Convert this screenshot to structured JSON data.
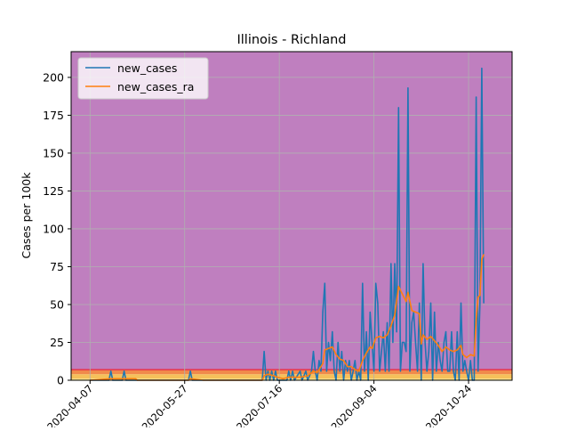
{
  "chart_data": {
    "type": "line",
    "title": "Illinois - Richland",
    "xlabel": "",
    "ylabel": "Cases per 100k",
    "x_start": "2020-03-28",
    "x_end": "2020-11-16",
    "ylim": [
      0,
      217
    ],
    "x_ticks": [
      "2020-04-07",
      "2020-05-27",
      "2020-07-16",
      "2020-09-04",
      "2020-10-24"
    ],
    "y_ticks": [
      0,
      25,
      50,
      75,
      100,
      125,
      150,
      175,
      200
    ],
    "grid": true,
    "legend": "top-left",
    "background_bands": [
      {
        "from": 0,
        "to": 1,
        "color": "#fde98c"
      },
      {
        "from": 1,
        "to": 4,
        "color": "#f5c05a"
      },
      {
        "from": 4,
        "to": 7,
        "color": "#f08a4b"
      },
      {
        "from": 7,
        "to": 217,
        "color": "#bf7fbf"
      }
    ],
    "band_edge_color": "#e8334a",
    "series": [
      {
        "name": "new_cases",
        "color": "#1f77b4",
        "points": [
          [
            "2020-04-07",
            0
          ],
          [
            "2020-04-17",
            0
          ],
          [
            "2020-04-18",
            6
          ],
          [
            "2020-04-19",
            0
          ],
          [
            "2020-04-24",
            0
          ],
          [
            "2020-04-25",
            6
          ],
          [
            "2020-04-26",
            0
          ],
          [
            "2020-05-27",
            0
          ],
          [
            "2020-05-29",
            0
          ],
          [
            "2020-05-30",
            6
          ],
          [
            "2020-05-31",
            0
          ],
          [
            "2020-07-07",
            0
          ],
          [
            "2020-07-08",
            19
          ],
          [
            "2020-07-09",
            0
          ],
          [
            "2020-07-10",
            6
          ],
          [
            "2020-07-11",
            0
          ],
          [
            "2020-07-12",
            6
          ],
          [
            "2020-07-13",
            0
          ],
          [
            "2020-07-14",
            6
          ],
          [
            "2020-07-15",
            0
          ],
          [
            "2020-07-20",
            0
          ],
          [
            "2020-07-21",
            6
          ],
          [
            "2020-07-22",
            0
          ],
          [
            "2020-07-23",
            6
          ],
          [
            "2020-07-24",
            0
          ],
          [
            "2020-07-27",
            6
          ],
          [
            "2020-07-28",
            0
          ],
          [
            "2020-07-30",
            6
          ],
          [
            "2020-07-31",
            0
          ],
          [
            "2020-08-02",
            6
          ],
          [
            "2020-08-03",
            19
          ],
          [
            "2020-08-04",
            6
          ],
          [
            "2020-08-05",
            0
          ],
          [
            "2020-08-06",
            13
          ],
          [
            "2020-08-07",
            6
          ],
          [
            "2020-08-08",
            45
          ],
          [
            "2020-08-09",
            64
          ],
          [
            "2020-08-10",
            6
          ],
          [
            "2020-08-11",
            25
          ],
          [
            "2020-08-12",
            13
          ],
          [
            "2020-08-13",
            32
          ],
          [
            "2020-08-14",
            6
          ],
          [
            "2020-08-15",
            0
          ],
          [
            "2020-08-16",
            25
          ],
          [
            "2020-08-17",
            6
          ],
          [
            "2020-08-18",
            19
          ],
          [
            "2020-08-19",
            0
          ],
          [
            "2020-08-20",
            13
          ],
          [
            "2020-08-21",
            6
          ],
          [
            "2020-08-22",
            13
          ],
          [
            "2020-08-23",
            0
          ],
          [
            "2020-08-24",
            6
          ],
          [
            "2020-08-25",
            13
          ],
          [
            "2020-08-26",
            0
          ],
          [
            "2020-08-27",
            6
          ],
          [
            "2020-08-28",
            0
          ],
          [
            "2020-08-29",
            64
          ],
          [
            "2020-08-30",
            6
          ],
          [
            "2020-08-31",
            32
          ],
          [
            "2020-09-01",
            0
          ],
          [
            "2020-09-02",
            45
          ],
          [
            "2020-09-03",
            25
          ],
          [
            "2020-09-04",
            6
          ],
          [
            "2020-09-05",
            64
          ],
          [
            "2020-09-06",
            51
          ],
          [
            "2020-09-07",
            6
          ],
          [
            "2020-09-08",
            19
          ],
          [
            "2020-09-09",
            32
          ],
          [
            "2020-09-10",
            6
          ],
          [
            "2020-09-11",
            38
          ],
          [
            "2020-09-12",
            6
          ],
          [
            "2020-09-13",
            77
          ],
          [
            "2020-09-14",
            25
          ],
          [
            "2020-09-15",
            77
          ],
          [
            "2020-09-16",
            32
          ],
          [
            "2020-09-17",
            180
          ],
          [
            "2020-09-18",
            6
          ],
          [
            "2020-09-19",
            25
          ],
          [
            "2020-09-20",
            25
          ],
          [
            "2020-09-21",
            19
          ],
          [
            "2020-09-22",
            193
          ],
          [
            "2020-09-23",
            6
          ],
          [
            "2020-09-24",
            38
          ],
          [
            "2020-09-25",
            45
          ],
          [
            "2020-09-26",
            25
          ],
          [
            "2020-09-27",
            6
          ],
          [
            "2020-09-28",
            51
          ],
          [
            "2020-09-29",
            0
          ],
          [
            "2020-09-30",
            77
          ],
          [
            "2020-10-01",
            25
          ],
          [
            "2020-10-02",
            6
          ],
          [
            "2020-10-03",
            19
          ],
          [
            "2020-10-04",
            51
          ],
          [
            "2020-10-05",
            0
          ],
          [
            "2020-10-06",
            45
          ],
          [
            "2020-10-07",
            6
          ],
          [
            "2020-10-08",
            25
          ],
          [
            "2020-10-09",
            13
          ],
          [
            "2020-10-10",
            6
          ],
          [
            "2020-10-11",
            25
          ],
          [
            "2020-10-12",
            32
          ],
          [
            "2020-10-13",
            6
          ],
          [
            "2020-10-14",
            6
          ],
          [
            "2020-10-15",
            32
          ],
          [
            "2020-10-16",
            6
          ],
          [
            "2020-10-17",
            0
          ],
          [
            "2020-10-18",
            32
          ],
          [
            "2020-10-19",
            0
          ],
          [
            "2020-10-20",
            51
          ],
          [
            "2020-10-21",
            6
          ],
          [
            "2020-10-22",
            13
          ],
          [
            "2020-10-23",
            6
          ],
          [
            "2020-10-24",
            0
          ],
          [
            "2020-10-25",
            13
          ],
          [
            "2020-10-26",
            0
          ],
          [
            "2020-10-27",
            0
          ],
          [
            "2020-10-28",
            187
          ],
          [
            "2020-10-29",
            6
          ],
          [
            "2020-10-30",
            51
          ],
          [
            "2020-10-31",
            206
          ],
          [
            "2020-11-01",
            51
          ]
        ]
      },
      {
        "name": "new_cases_ra",
        "color": "#ff7f0e",
        "points": [
          [
            "2020-04-07",
            0
          ],
          [
            "2020-04-18",
            1
          ],
          [
            "2020-04-24",
            1
          ],
          [
            "2020-05-01",
            1
          ],
          [
            "2020-05-02",
            0
          ],
          [
            "2020-05-29",
            0
          ],
          [
            "2020-05-30",
            1
          ],
          [
            "2020-06-06",
            0
          ],
          [
            "2020-07-07",
            0
          ],
          [
            "2020-07-08",
            3
          ],
          [
            "2020-07-10",
            4
          ],
          [
            "2020-07-13",
            3
          ],
          [
            "2020-07-15",
            2
          ],
          [
            "2020-07-18",
            1
          ],
          [
            "2020-07-21",
            2
          ],
          [
            "2020-07-24",
            2
          ],
          [
            "2020-07-27",
            2
          ],
          [
            "2020-07-31",
            3
          ],
          [
            "2020-08-03",
            6
          ],
          [
            "2020-08-05",
            5
          ],
          [
            "2020-08-08",
            11
          ],
          [
            "2020-08-09",
            20
          ],
          [
            "2020-08-11",
            21
          ],
          [
            "2020-08-13",
            22
          ],
          [
            "2020-08-15",
            17
          ],
          [
            "2020-08-17",
            14
          ],
          [
            "2020-08-19",
            13
          ],
          [
            "2020-08-21",
            9
          ],
          [
            "2020-08-23",
            9
          ],
          [
            "2020-08-25",
            7
          ],
          [
            "2020-08-27",
            6
          ],
          [
            "2020-08-29",
            13
          ],
          [
            "2020-08-31",
            18
          ],
          [
            "2020-09-02",
            22
          ],
          [
            "2020-09-03",
            21
          ],
          [
            "2020-09-05",
            28
          ],
          [
            "2020-09-07",
            29
          ],
          [
            "2020-09-09",
            28
          ],
          [
            "2020-09-11",
            30
          ],
          [
            "2020-09-13",
            36
          ],
          [
            "2020-09-15",
            43
          ],
          [
            "2020-09-17",
            62
          ],
          [
            "2020-09-19",
            57
          ],
          [
            "2020-09-21",
            52
          ],
          [
            "2020-09-22",
            58
          ],
          [
            "2020-09-24",
            46
          ],
          [
            "2020-09-26",
            45
          ],
          [
            "2020-09-28",
            44
          ],
          [
            "2020-09-29",
            24
          ],
          [
            "2020-09-30",
            30
          ],
          [
            "2020-10-02",
            27
          ],
          [
            "2020-10-04",
            29
          ],
          [
            "2020-10-06",
            26
          ],
          [
            "2020-10-08",
            23
          ],
          [
            "2020-10-10",
            19
          ],
          [
            "2020-10-12",
            22
          ],
          [
            "2020-10-14",
            20
          ],
          [
            "2020-10-16",
            19
          ],
          [
            "2020-10-18",
            20
          ],
          [
            "2020-10-20",
            23
          ],
          [
            "2020-10-21",
            17
          ],
          [
            "2020-10-23",
            15
          ],
          [
            "2020-10-25",
            17
          ],
          [
            "2020-10-27",
            16
          ],
          [
            "2020-10-28",
            40
          ],
          [
            "2020-10-29",
            55
          ],
          [
            "2020-10-30",
            56
          ],
          [
            "2020-10-31",
            80
          ],
          [
            "2020-11-01",
            83
          ]
        ]
      }
    ]
  }
}
